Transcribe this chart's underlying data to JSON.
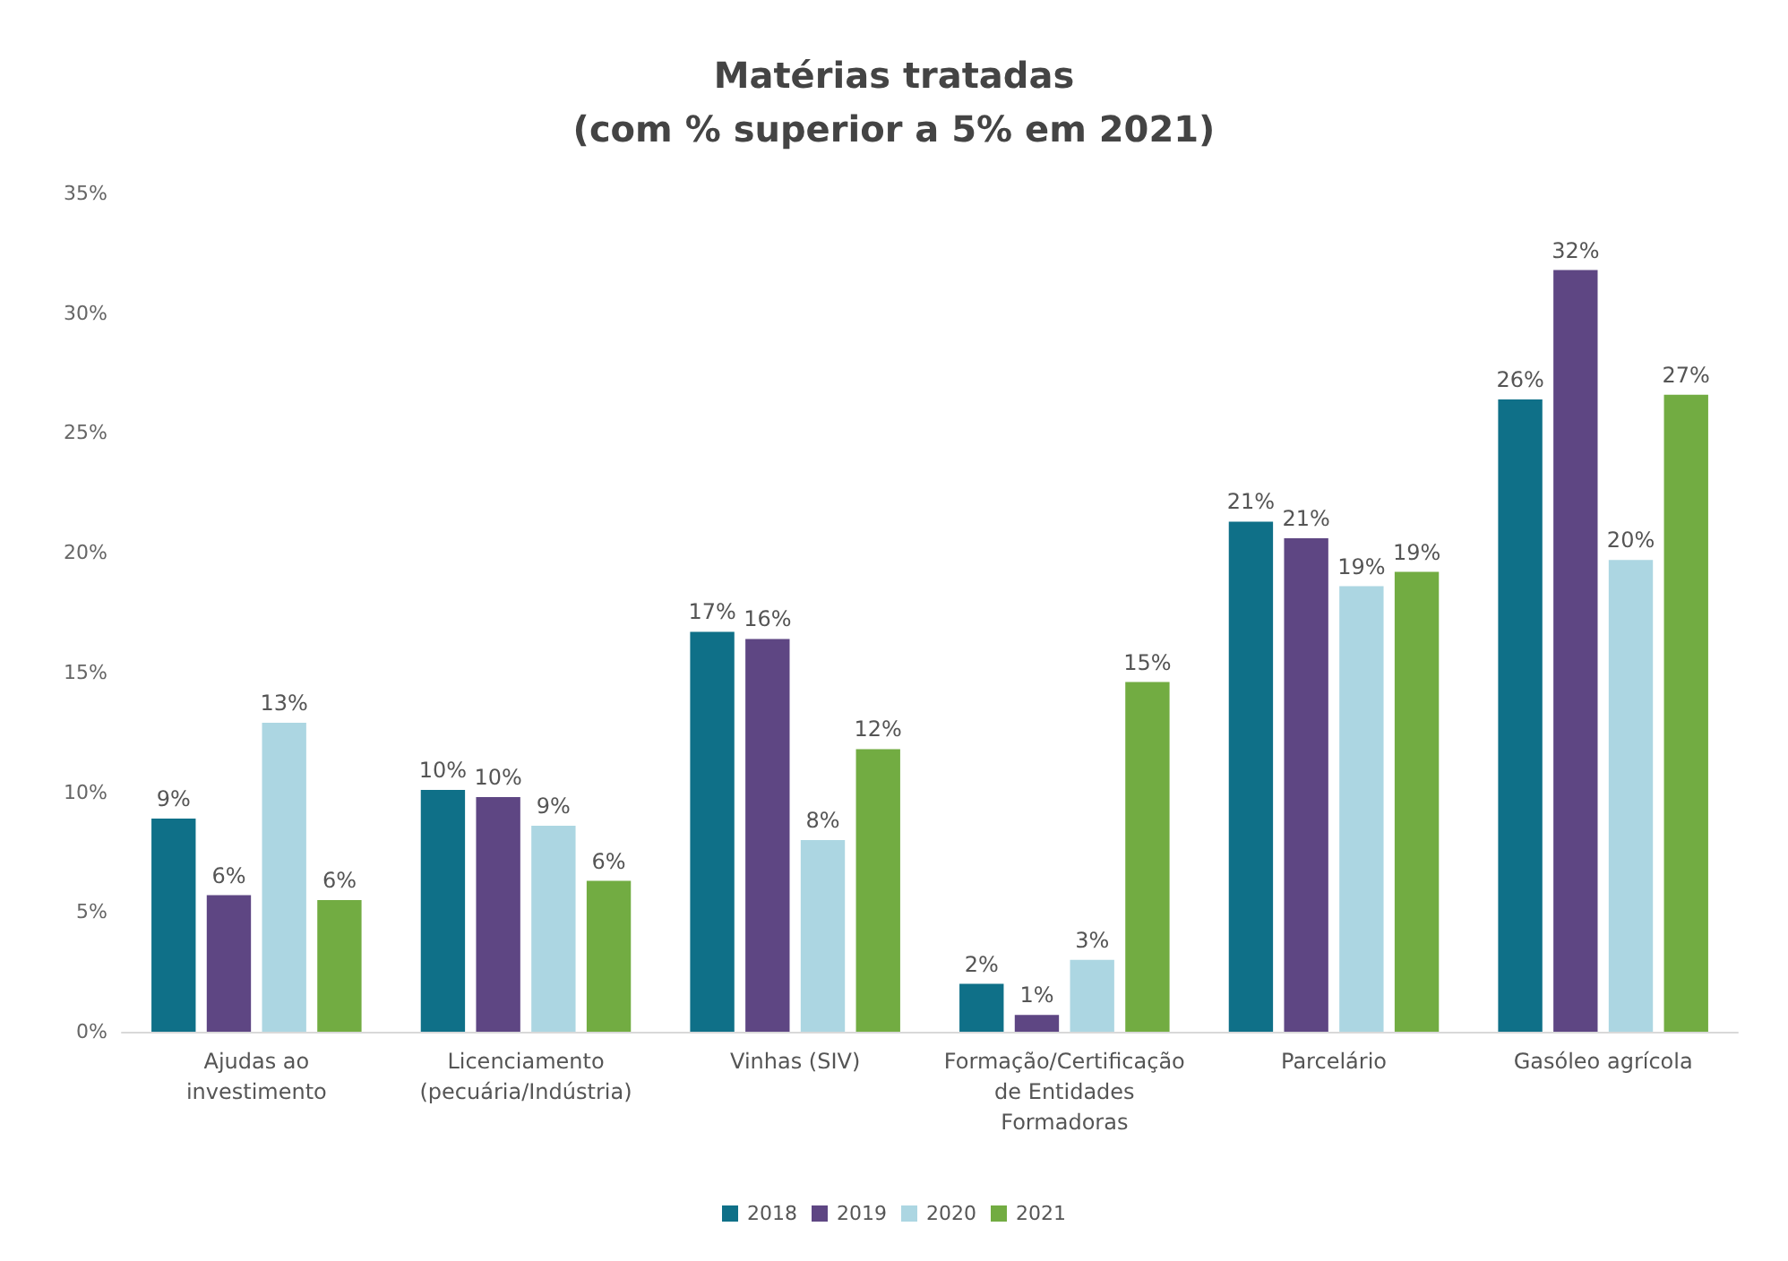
{
  "chart_data": {
    "type": "bar",
    "title": "Matérias tratadas\n(com % superior a 5% em 2021)",
    "categories": [
      "Ajudas ao\ninvestimento",
      "Licenciamento\n(pecuária/Indústria)",
      "Vinhas (SIV)",
      "Formação/Certificação\nde Entidades\nFormadoras",
      "Parcelário",
      "Gasóleo agrícola"
    ],
    "series": [
      {
        "name": "2018",
        "color": "#0f7088",
        "values": [
          8.9,
          10.1,
          16.7,
          2.0,
          21.3,
          26.4
        ],
        "value_labels": [
          "9%",
          "10%",
          "17%",
          "2%",
          "21%",
          "26%"
        ]
      },
      {
        "name": "2019",
        "color": "#5e4683",
        "values": [
          5.7,
          9.8,
          16.4,
          0.7,
          20.6,
          31.8
        ],
        "value_labels": [
          "6%",
          "10%",
          "16%",
          "1%",
          "21%",
          "32%"
        ]
      },
      {
        "name": "2020",
        "color": "#acd6e2",
        "values": [
          12.9,
          8.6,
          8.0,
          3.0,
          18.6,
          19.7
        ],
        "value_labels": [
          "13%",
          "9%",
          "8%",
          "3%",
          "19%",
          "20%"
        ]
      },
      {
        "name": "2021",
        "color": "#72ac42",
        "values": [
          5.5,
          6.3,
          11.8,
          14.6,
          19.2,
          26.6
        ],
        "value_labels": [
          "6%",
          "6%",
          "12%",
          "15%",
          "19%",
          "27%"
        ]
      }
    ],
    "ylim": [
      0,
      35
    ],
    "yticks": [
      {
        "value": 0,
        "label": "0%"
      },
      {
        "value": 5,
        "label": "5%"
      },
      {
        "value": 10,
        "label": "10%"
      },
      {
        "value": 15,
        "label": "15%"
      },
      {
        "value": 20,
        "label": "20%"
      },
      {
        "value": 25,
        "label": "25%"
      },
      {
        "value": 30,
        "label": "30%"
      },
      {
        "value": 35,
        "label": "35%"
      }
    ],
    "grid": false,
    "legend": "bottom"
  }
}
